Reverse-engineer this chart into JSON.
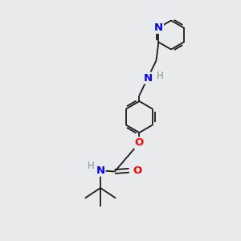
{
  "bg_color": "#e8eaec",
  "bond_color": "#1a1a1a",
  "N_color": "#0000ff",
  "O_color": "#ff0000",
  "H_color": "#7a9a8a",
  "font_size": 8.5,
  "line_width": 1.3,
  "fig_size": [
    3.0,
    3.0
  ],
  "dpi": 100,
  "xlim": [
    0,
    10
  ],
  "ylim": [
    0,
    10
  ]
}
